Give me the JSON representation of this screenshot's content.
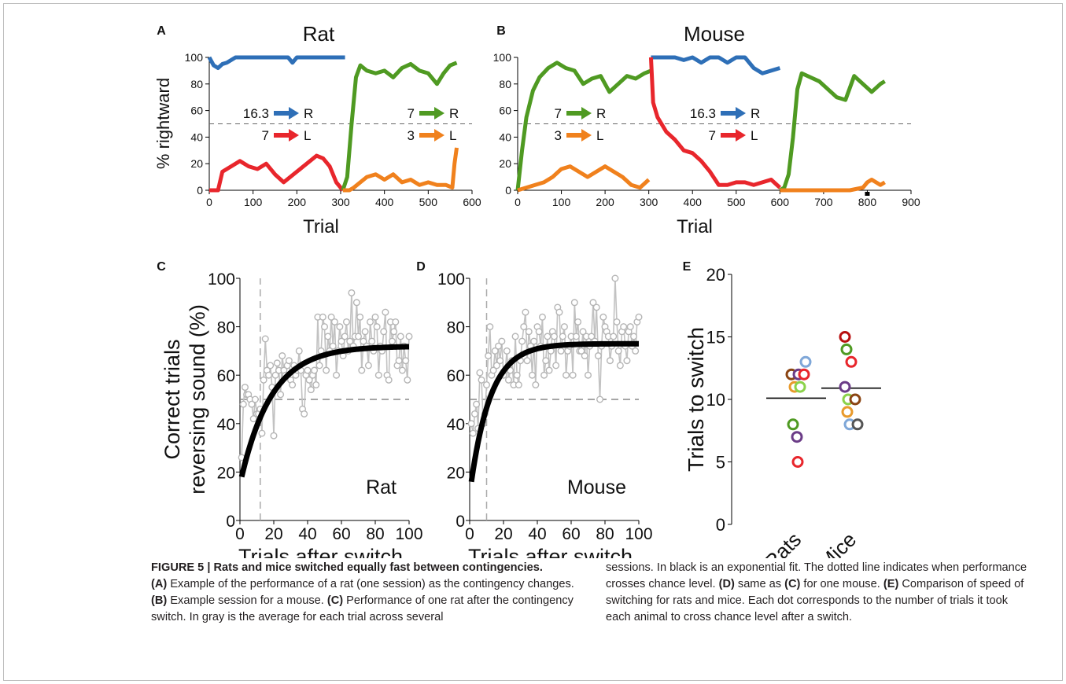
{
  "chart_data": [
    {
      "panel": "A",
      "type": "line",
      "title": "Rat",
      "xlabel": "Trial",
      "ylabel": "% rightward",
      "xlim": [
        0,
        600
      ],
      "ylim": [
        0,
        100
      ],
      "xticks": [
        0,
        100,
        200,
        300,
        400,
        500,
        600
      ],
      "yticks": [
        0,
        20,
        40,
        60,
        80,
        100
      ],
      "chance_level": 50,
      "labels": [
        {
          "num": "16.3",
          "side": "R",
          "color": "#2e6fb7"
        },
        {
          "num": "7",
          "side": "L",
          "color": "#e8262c"
        },
        {
          "num": "7",
          "side": "R",
          "color": "#4f9a22"
        },
        {
          "num": "3",
          "side": "L",
          "color": "#f0811d"
        }
      ],
      "series": [
        {
          "color": "#2e6fb7",
          "x": [
            0,
            10,
            20,
            30,
            40,
            60,
            80,
            100,
            120,
            140,
            160,
            180,
            190,
            200,
            220,
            240,
            260,
            280,
            300,
            310
          ],
          "y": [
            100,
            94,
            92,
            95,
            96,
            100,
            100,
            100,
            100,
            100,
            100,
            100,
            96,
            100,
            100,
            100,
            100,
            100,
            100,
            100
          ]
        },
        {
          "color": "#e8262c",
          "x": [
            0,
            20,
            30,
            50,
            70,
            90,
            110,
            130,
            150,
            170,
            185,
            200,
            215,
            230,
            245,
            260,
            275,
            290,
            305
          ],
          "y": [
            0,
            0,
            14,
            18,
            22,
            18,
            16,
            20,
            12,
            6,
            10,
            14,
            18,
            22,
            26,
            24,
            18,
            6,
            0
          ]
        },
        {
          "color": "#4f9a22",
          "x": [
            305,
            315,
            325,
            335,
            345,
            360,
            380,
            400,
            420,
            440,
            460,
            480,
            500,
            520,
            535,
            550,
            565
          ],
          "y": [
            0,
            10,
            50,
            85,
            94,
            90,
            88,
            90,
            85,
            92,
            95,
            90,
            88,
            80,
            88,
            94,
            96
          ]
        },
        {
          "color": "#f0811d",
          "x": [
            305,
            320,
            330,
            345,
            360,
            380,
            400,
            420,
            440,
            460,
            480,
            500,
            520,
            540,
            555,
            560,
            565
          ],
          "y": [
            0,
            0,
            2,
            6,
            10,
            12,
            8,
            12,
            6,
            8,
            4,
            6,
            4,
            4,
            2,
            20,
            32
          ]
        }
      ]
    },
    {
      "panel": "B",
      "type": "line",
      "title": "Mouse",
      "xlabel": "Trial",
      "ylabel": "",
      "xlim": [
        0,
        900
      ],
      "ylim": [
        0,
        100
      ],
      "xticks": [
        0,
        100,
        200,
        300,
        400,
        500,
        600,
        700,
        800,
        900
      ],
      "yticks": [
        0,
        20,
        40,
        60,
        80,
        100
      ],
      "chance_level": 50,
      "labels": [
        {
          "num": "7",
          "side": "R",
          "color": "#4f9a22"
        },
        {
          "num": "3",
          "side": "L",
          "color": "#f0811d"
        },
        {
          "num": "16.3",
          "side": "R",
          "color": "#2e6fb7"
        },
        {
          "num": "7",
          "side": "L",
          "color": "#e8262c"
        }
      ],
      "series": [
        {
          "color": "#4f9a22",
          "x": [
            0,
            10,
            20,
            35,
            50,
            70,
            90,
            110,
            130,
            150,
            170,
            190,
            210,
            230,
            250,
            270,
            290,
            305
          ],
          "y": [
            0,
            30,
            55,
            75,
            85,
            92,
            96,
            92,
            90,
            80,
            84,
            86,
            74,
            80,
            86,
            84,
            88,
            90
          ]
        },
        {
          "color": "#f0811d",
          "x": [
            0,
            20,
            40,
            60,
            80,
            100,
            120,
            140,
            160,
            180,
            200,
            220,
            240,
            260,
            280,
            300
          ],
          "y": [
            0,
            2,
            4,
            6,
            10,
            16,
            18,
            14,
            10,
            14,
            18,
            14,
            10,
            4,
            2,
            8
          ]
        },
        {
          "color": "#2e6fb7",
          "x": [
            305,
            320,
            340,
            360,
            380,
            400,
            420,
            440,
            460,
            480,
            500,
            520,
            540,
            560,
            580,
            600
          ],
          "y": [
            100,
            100,
            100,
            100,
            98,
            100,
            96,
            100,
            100,
            96,
            100,
            100,
            92,
            88,
            90,
            92
          ]
        },
        {
          "color": "#e8262c",
          "x": [
            305,
            310,
            320,
            340,
            360,
            380,
            400,
            420,
            440,
            460,
            480,
            500,
            520,
            540,
            560,
            580,
            600
          ],
          "y": [
            100,
            66,
            55,
            44,
            38,
            30,
            28,
            22,
            14,
            4,
            4,
            6,
            6,
            4,
            6,
            8,
            2
          ]
        },
        {
          "color": "#4f9a22",
          "x": [
            600,
            610,
            620,
            630,
            640,
            650,
            670,
            690,
            710,
            730,
            750,
            770,
            790,
            810,
            830,
            840
          ],
          "y": [
            0,
            2,
            12,
            40,
            76,
            88,
            85,
            82,
            76,
            70,
            68,
            86,
            80,
            74,
            80,
            82
          ]
        },
        {
          "color": "#f0811d",
          "x": [
            600,
            640,
            680,
            720,
            760,
            790,
            800,
            810,
            820,
            830,
            840
          ],
          "y": [
            0,
            0,
            0,
            0,
            0,
            2,
            6,
            8,
            6,
            4,
            6
          ]
        }
      ]
    },
    {
      "panel": "C",
      "type": "scatter",
      "annotation": "Rat",
      "xlabel": "Trials after switch",
      "ylabel": "Correct trials\nreversing sound (%)",
      "xlim": [
        0,
        100
      ],
      "ylim": [
        0,
        100
      ],
      "xticks": [
        0,
        20,
        40,
        60,
        80,
        100
      ],
      "yticks": [
        0,
        20,
        40,
        60,
        80,
        100
      ],
      "chance_level": 50,
      "crossing_trial": 12,
      "fit": {
        "type": "exponential",
        "start": 18,
        "asymptote": 72,
        "rate": 0.055
      },
      "y": [
        26,
        48,
        55,
        52,
        52,
        50,
        48,
        42,
        50,
        44,
        44,
        46,
        36,
        58,
        75,
        62,
        60,
        64,
        55,
        35,
        60,
        65,
        62,
        52,
        68,
        62,
        60,
        64,
        66,
        58,
        56,
        64,
        60,
        62,
        70,
        62,
        46,
        44,
        60,
        62,
        58,
        54,
        60,
        62,
        56,
        84,
        64,
        70,
        84,
        80,
        62,
        76,
        70,
        84,
        72,
        82,
        60,
        70,
        80,
        74,
        68,
        76,
        82,
        70,
        74,
        94,
        72,
        76,
        90,
        76,
        84,
        62,
        74,
        78,
        72,
        64,
        82,
        74,
        70,
        84,
        80,
        60,
        72,
        70,
        78,
        86,
        60,
        58,
        82,
        74,
        78,
        82,
        64,
        66,
        76,
        62,
        72,
        66,
        58,
        76
      ]
    },
    {
      "panel": "D",
      "type": "scatter",
      "annotation": "Mouse",
      "xlabel": "Trials after switch",
      "ylabel": "",
      "xlim": [
        0,
        100
      ],
      "ylim": [
        0,
        100
      ],
      "xticks": [
        0,
        20,
        40,
        60,
        80,
        100
      ],
      "yticks": [
        0,
        20,
        40,
        60,
        80,
        100
      ],
      "chance_level": 50,
      "crossing_trial": 10,
      "fit": {
        "type": "exponential",
        "start": 16,
        "asymptote": 73,
        "rate": 0.085
      },
      "y": [
        40,
        36,
        44,
        48,
        38,
        61,
        58,
        40,
        44,
        56,
        68,
        80,
        60,
        62,
        70,
        64,
        72,
        66,
        74,
        60,
        62,
        70,
        58,
        62,
        66,
        56,
        76,
        60,
        56,
        66,
        74,
        80,
        86,
        66,
        78,
        72,
        60,
        74,
        56,
        80,
        78,
        72,
        84,
        60,
        66,
        76,
        62,
        70,
        78,
        76,
        64,
        88,
        86,
        70,
        76,
        80,
        60,
        70,
        72,
        76,
        60,
        90,
        76,
        82,
        70,
        70,
        78,
        68,
        76,
        60,
        72,
        76,
        90,
        74,
        88,
        68,
        50,
        72,
        84,
        80,
        78,
        76,
        66,
        72,
        76,
        100,
        82,
        70,
        64,
        78,
        80,
        72,
        66,
        78,
        80,
        72,
        76,
        70,
        82,
        84
      ]
    },
    {
      "panel": "E",
      "type": "scatter",
      "xlabel": "",
      "ylabel": "Trials to switch",
      "ylim": [
        0,
        20
      ],
      "yticks": [
        0,
        5,
        10,
        15,
        20
      ],
      "categories": [
        "Rats",
        "Mice"
      ],
      "means": [
        10.1,
        10.9
      ],
      "points": [
        {
          "group": 0,
          "y": 12,
          "color": "#8b4513"
        },
        {
          "group": 0,
          "y": 12,
          "color": "#6b3c87"
        },
        {
          "group": 0,
          "y": 12,
          "color": "#e8262c"
        },
        {
          "group": 0,
          "y": 13,
          "color": "#7fa7d8"
        },
        {
          "group": 0,
          "y": 11,
          "color": "#e89a2c"
        },
        {
          "group": 0,
          "y": 11,
          "color": "#8bd24a"
        },
        {
          "group": 0,
          "y": 8,
          "color": "#4f9a22"
        },
        {
          "group": 0,
          "y": 7,
          "color": "#6b3c87"
        },
        {
          "group": 0,
          "y": 5,
          "color": "#e8262c"
        },
        {
          "group": 1,
          "y": 15,
          "color": "#b80f0f"
        },
        {
          "group": 1,
          "y": 14,
          "color": "#4f9a22"
        },
        {
          "group": 1,
          "y": 13,
          "color": "#e8262c"
        },
        {
          "group": 1,
          "y": 11,
          "color": "#6b3c87"
        },
        {
          "group": 1,
          "y": 10,
          "color": "#8bd24a"
        },
        {
          "group": 1,
          "y": 10,
          "color": "#8b4513"
        },
        {
          "group": 1,
          "y": 9,
          "color": "#e89a2c"
        },
        {
          "group": 1,
          "y": 8,
          "color": "#7fa7d8"
        },
        {
          "group": 1,
          "y": 8,
          "color": "#555555"
        }
      ]
    }
  ],
  "panel_labels": {
    "A": "A",
    "B": "B",
    "C": "C",
    "D": "D",
    "E": "E"
  },
  "caption": {
    "figure_label": "FIGURE 5 | Rats and mice switched equally fast between contingencies.",
    "col1": [
      {
        "b": "(A)",
        "t": " Example of the performance of a rat (one session) as the contingency changes. "
      },
      {
        "b": "(B)",
        "t": " Example session for a mouse. "
      },
      {
        "b": "(C)",
        "t": " Performance of one rat after the contingency switch. In gray is the average for each trial across several"
      }
    ],
    "col2": [
      {
        "b": "",
        "t": "sessions. In black is an exponential fit. The dotted line indicates when performance crosses chance level. "
      },
      {
        "b": "(D)",
        "t": " same as "
      },
      {
        "b": "(C)",
        "t": " for one mouse. "
      },
      {
        "b": "(E)",
        "t": " Comparison of speed of switching for rats and mice. Each dot corresponds to the number of trials it took each animal to cross chance level after a switch."
      }
    ]
  }
}
